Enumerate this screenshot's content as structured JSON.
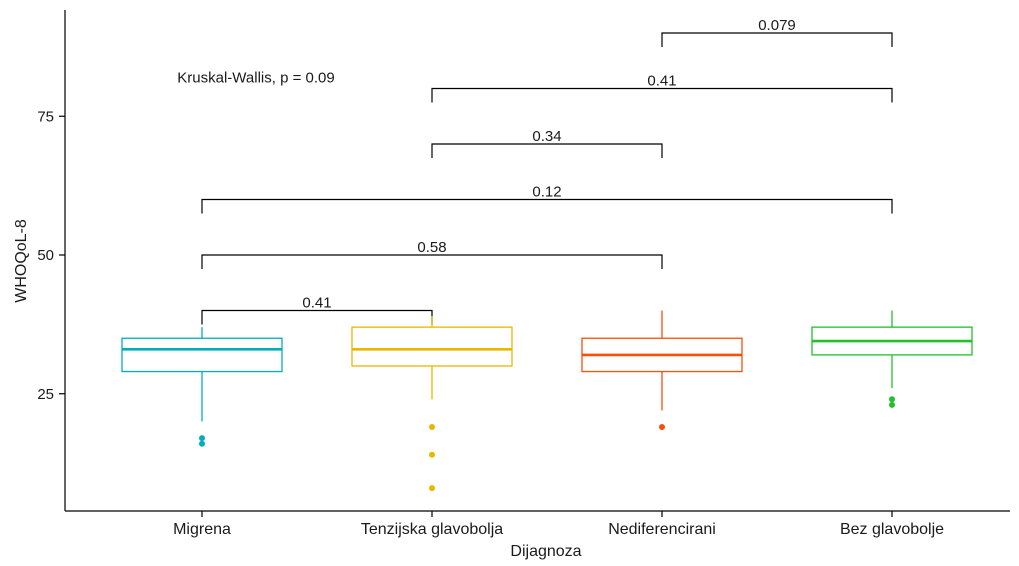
{
  "chart_data": {
    "type": "box",
    "xlabel": "Dijagnoza",
    "ylabel": "WHOQoL-8",
    "ylim": [
      5,
      95
    ],
    "yticks": [
      25,
      50,
      75
    ],
    "grid": false,
    "legend": "none",
    "categories": [
      "Migrena",
      "Tenzijska glavobolja",
      "Nediferencirani",
      "Bez glavobolje"
    ],
    "boxes": [
      {
        "category": "Migrena",
        "color": "#00AFBB",
        "q1": 29,
        "median": 33,
        "q3": 35,
        "whisker_low": 20,
        "whisker_high": 37,
        "outliers": [
          16,
          17
        ]
      },
      {
        "category": "Tenzijska glavobolja",
        "color": "#E7B800",
        "q1": 30,
        "median": 33,
        "q3": 37,
        "whisker_low": 24,
        "whisker_high": 39,
        "outliers": [
          8,
          14,
          19
        ]
      },
      {
        "category": "Nediferencirani",
        "color": "#FC4E07",
        "q1": 29,
        "median": 32,
        "q3": 35,
        "whisker_low": 22,
        "whisker_high": 40,
        "outliers": [
          19
        ]
      },
      {
        "category": "Bez glavobolje",
        "color": "#22C02F",
        "q1": 32,
        "median": 34.5,
        "q3": 37,
        "whisker_low": 26,
        "whisker_high": 40,
        "outliers": [
          23,
          24
        ]
      }
    ],
    "comparisons": [
      {
        "from": 0,
        "to": 1,
        "y": 40,
        "label": "0.41"
      },
      {
        "from": 0,
        "to": 2,
        "y": 50,
        "label": "0.58"
      },
      {
        "from": 0,
        "to": 3,
        "y": 60,
        "label": "0.12"
      },
      {
        "from": 1,
        "to": 2,
        "y": 70,
        "label": "0.34"
      },
      {
        "from": 1,
        "to": 3,
        "y": 80,
        "label": "0.41"
      },
      {
        "from": 2,
        "to": 3,
        "y": 90,
        "label": "0.079"
      }
    ],
    "annotation": {
      "text": "Kruskal-Wallis, p = 0.09",
      "y": 82
    }
  }
}
